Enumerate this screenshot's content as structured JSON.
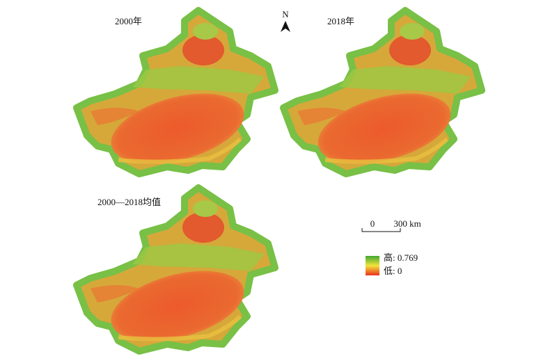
{
  "panels": [
    {
      "title": "2000年"
    },
    {
      "title": "2018年"
    },
    {
      "title": "2000—2018均值"
    }
  ],
  "north_arrow": {
    "label": "N"
  },
  "scale_bar": {
    "start": "0",
    "end": "300 km"
  },
  "legend": {
    "high": "高: 0.769",
    "low": "低: 0"
  }
}
